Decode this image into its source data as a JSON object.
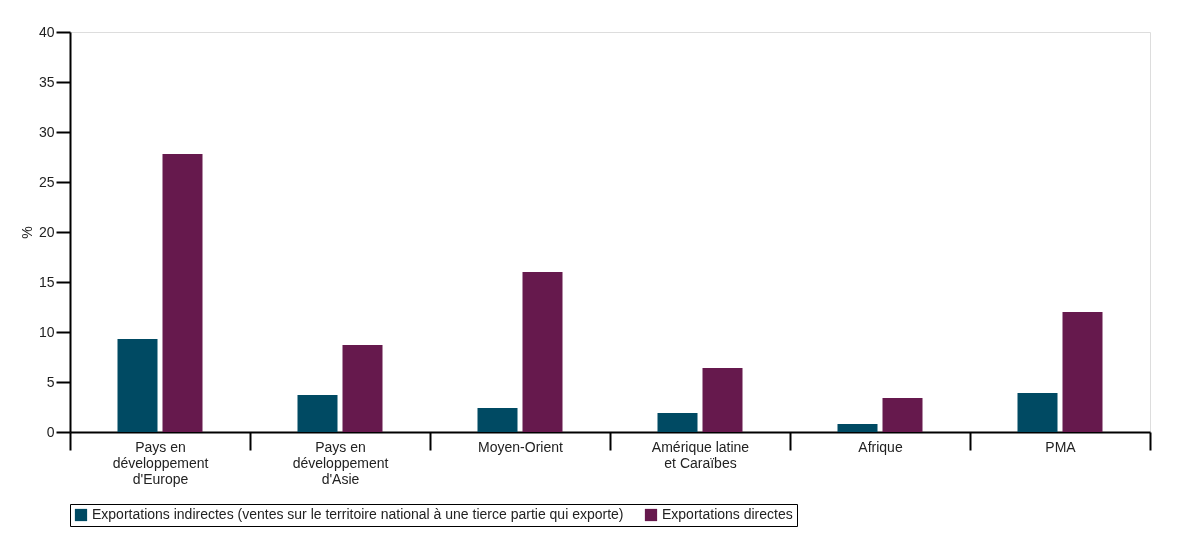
{
  "chart_data": {
    "type": "bar",
    "ylabel": "%",
    "categories": [
      "Pays en développement d'Europe",
      "Pays en développement d'Asie",
      "Moyen-Orient",
      "Amérique latine et Caraïbes",
      "Afrique",
      "PMA"
    ],
    "series": [
      {
        "name": "Exportations indirectes (ventes sur le territoire national à une tierce partie qui exporte)",
        "color": "#004a63",
        "values": [
          9.3,
          3.7,
          2.4,
          1.9,
          0.8,
          3.9
        ]
      },
      {
        "name": "Exportations directes",
        "color": "#66194d",
        "values": [
          27.8,
          8.7,
          16.0,
          6.4,
          3.4,
          12.0
        ]
      }
    ],
    "ylim": [
      0,
      40
    ],
    "yticks": [
      0,
      5,
      10,
      15,
      20,
      25,
      30,
      35,
      40
    ],
    "grid": false,
    "legend": "bottom"
  }
}
